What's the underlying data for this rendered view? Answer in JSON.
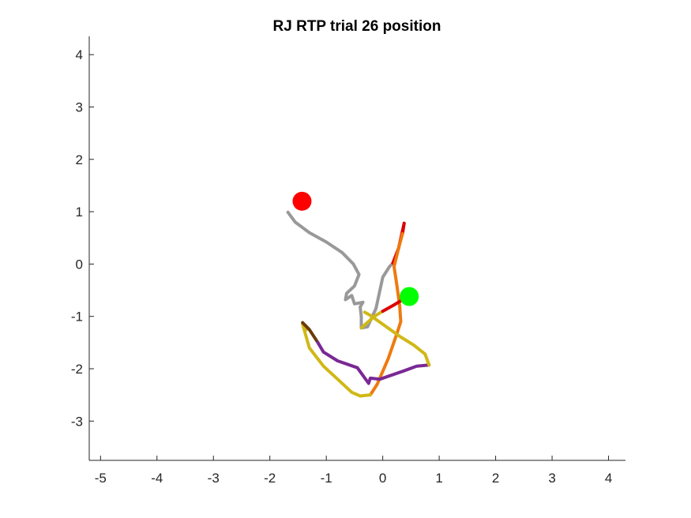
{
  "chart_data": {
    "type": "line",
    "title": "RJ  RTP trial 26 position",
    "xlabel": "",
    "ylabel": "",
    "xlim": [
      -5.2,
      4.3
    ],
    "ylim": [
      -3.75,
      4.35
    ],
    "xticks": [
      -5,
      -4,
      -3,
      -2,
      -1,
      0,
      1,
      2,
      3,
      4
    ],
    "yticks": [
      -3,
      -2,
      -1,
      0,
      1,
      2,
      3,
      4
    ],
    "grid": false,
    "legend": "none",
    "series": [
      {
        "color": "#999999",
        "points": [
          [
            -1.68,
            0.99
          ],
          [
            -1.55,
            0.8
          ],
          [
            -1.3,
            0.6
          ],
          [
            -1.0,
            0.42
          ],
          [
            -0.72,
            0.22
          ],
          [
            -0.52,
            0.0
          ],
          [
            -0.42,
            -0.2
          ],
          [
            -0.5,
            -0.42
          ],
          [
            -0.64,
            -0.56
          ],
          [
            -0.66,
            -0.68
          ],
          [
            -0.55,
            -0.6
          ],
          [
            -0.5,
            -0.76
          ],
          [
            -0.35,
            -0.73
          ],
          [
            -0.4,
            -0.82
          ],
          [
            -0.38,
            -1.0
          ],
          [
            -0.38,
            -1.22
          ],
          [
            -0.27,
            -1.2
          ],
          [
            -0.12,
            -0.85
          ],
          [
            0.0,
            -0.25
          ],
          [
            0.12,
            -0.05
          ],
          [
            0.18,
            0.02
          ]
        ]
      },
      {
        "color": "#dd0000",
        "points": [
          [
            0.18,
            0.02
          ],
          [
            0.28,
            0.3
          ],
          [
            0.38,
            0.78
          ],
          [
            0.35,
            0.58
          ]
        ]
      },
      {
        "color": "#ee7a10",
        "points": [
          [
            0.35,
            0.58
          ],
          [
            0.28,
            0.3
          ],
          [
            0.2,
            -0.05
          ],
          [
            0.25,
            -0.4
          ],
          [
            0.3,
            -0.8
          ],
          [
            0.32,
            -1.1
          ],
          [
            0.26,
            -1.3
          ],
          [
            0.1,
            -1.8
          ],
          [
            -0.1,
            -2.3
          ],
          [
            -0.22,
            -2.5
          ]
        ]
      },
      {
        "color": "#d0b816",
        "points": [
          [
            -0.22,
            -2.5
          ],
          [
            -0.4,
            -2.52
          ],
          [
            -0.55,
            -2.45
          ],
          [
            -0.8,
            -2.2
          ],
          [
            -1.05,
            -1.95
          ],
          [
            -1.3,
            -1.6
          ],
          [
            -1.42,
            -1.15
          ],
          [
            -1.35,
            -1.25
          ]
        ]
      },
      {
        "color": "#6b3a0a",
        "points": [
          [
            -1.42,
            -1.12
          ],
          [
            -1.3,
            -1.25
          ],
          [
            -1.15,
            -1.5
          ]
        ]
      },
      {
        "color": "#7a2895",
        "points": [
          [
            -1.15,
            -1.5
          ],
          [
            -1.05,
            -1.68
          ],
          [
            -0.8,
            -1.85
          ],
          [
            -0.45,
            -1.98
          ],
          [
            -0.25,
            -2.28
          ],
          [
            -0.22,
            -2.18
          ],
          [
            -0.05,
            -2.2
          ],
          [
            0.35,
            -2.05
          ],
          [
            0.6,
            -1.95
          ],
          [
            0.82,
            -1.93
          ]
        ]
      },
      {
        "color": "#d0b816",
        "points": [
          [
            0.82,
            -1.93
          ],
          [
            0.75,
            -1.72
          ],
          [
            0.55,
            -1.55
          ],
          [
            0.3,
            -1.38
          ],
          [
            0.0,
            -1.15
          ],
          [
            -0.22,
            -0.98
          ],
          [
            -0.32,
            -0.92
          ]
        ]
      },
      {
        "color": "#d0b816",
        "points": [
          [
            -0.38,
            -1.22
          ],
          [
            -0.15,
            -1.0
          ],
          [
            0.0,
            -0.9
          ]
        ]
      },
      {
        "color": "#dd0000",
        "points": [
          [
            0.0,
            -0.9
          ],
          [
            0.2,
            -0.78
          ],
          [
            0.4,
            -0.65
          ]
        ]
      }
    ],
    "markers": [
      {
        "name": "start",
        "x": -1.43,
        "y": 1.2,
        "color": "#ff0000"
      },
      {
        "name": "target",
        "x": 0.47,
        "y": -0.62,
        "color": "#00ff00"
      }
    ]
  }
}
